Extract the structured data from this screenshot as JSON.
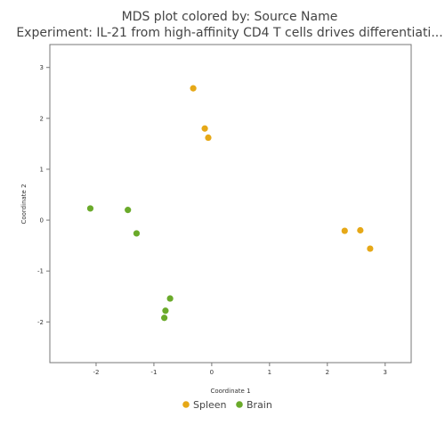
{
  "chart_data": {
    "type": "scatter",
    "title": "MDS plot colored by: Source Name",
    "subtitle": "Experiment: IL-21 from high-affinity CD4 T cells drives differentiati...",
    "xlabel": "Coordinate 1",
    "ylabel": "Coordinate 2",
    "xlim": [
      -2.8,
      3.45
    ],
    "ylim": [
      -2.8,
      3.45
    ],
    "xticks": [
      -2,
      -1,
      0,
      1,
      2,
      3
    ],
    "yticks": [
      -2,
      -1,
      0,
      1,
      2,
      3
    ],
    "grid": false,
    "legend_position": "bottom",
    "series": [
      {
        "name": "Spleen",
        "color": "#e6a817",
        "points": [
          {
            "x": -0.32,
            "y": 2.59
          },
          {
            "x": -0.12,
            "y": 1.8
          },
          {
            "x": -0.06,
            "y": 1.62
          },
          {
            "x": 2.3,
            "y": -0.21
          },
          {
            "x": 2.57,
            "y": -0.2
          },
          {
            "x": 2.74,
            "y": -0.56
          }
        ]
      },
      {
        "name": "Brain",
        "color": "#6aaa2a",
        "points": [
          {
            "x": -2.1,
            "y": 0.23
          },
          {
            "x": -1.45,
            "y": 0.2
          },
          {
            "x": -1.3,
            "y": -0.26
          },
          {
            "x": -0.72,
            "y": -1.54
          },
          {
            "x": -0.8,
            "y": -1.78
          },
          {
            "x": -0.82,
            "y": -1.92
          }
        ]
      }
    ]
  }
}
